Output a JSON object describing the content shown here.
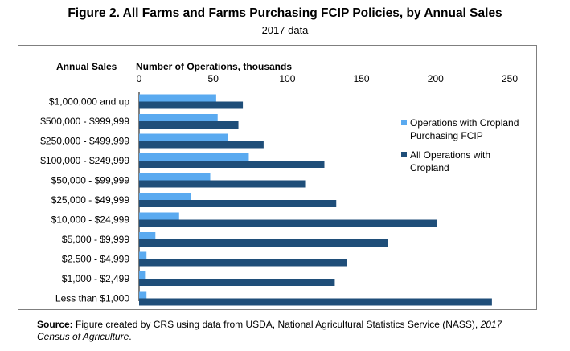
{
  "title": "Figure 2. All Farms and Farms Purchasing FCIP Policies, by Annual Sales",
  "subtitle": "2017 data",
  "source": {
    "label": "Source:",
    "text": "Figure created by CRS using data from USDA, National Agricultural Statistics Service (NASS),",
    "italic": "2017 Census of Agriculture",
    "end": "."
  },
  "chart_data": {
    "type": "bar",
    "orientation": "horizontal",
    "category_header": "Annual Sales",
    "xlabel": "Number of Operations, thousands",
    "xlim": [
      0,
      250
    ],
    "xticks": [
      0,
      50,
      100,
      150,
      200,
      250
    ],
    "grid": false,
    "legend_position": "right",
    "categories": [
      "$1,000,000 and up",
      "$500,000 - $999,999",
      "$250,000 - $499,999",
      "$100,000 - $249,999",
      "$50,000 - $99,999",
      "$25,000 - $49,999",
      "$10,000 - $24,999",
      "$5,000 - $9,999",
      "$2,500 - $4,999",
      "$1,000 - $2,499",
      "Less than $1,000"
    ],
    "series": [
      {
        "name": "Operations with Cropland Purchasing FCIP",
        "color": "#5aaaf0",
        "values": [
          52,
          53,
          60,
          74,
          48,
          35,
          27,
          11,
          5,
          4,
          5
        ]
      },
      {
        "name": "All Operations with Cropland",
        "color": "#1f4e79",
        "values": [
          70,
          67,
          84,
          125,
          112,
          133,
          201,
          168,
          140,
          132,
          238
        ]
      }
    ]
  }
}
